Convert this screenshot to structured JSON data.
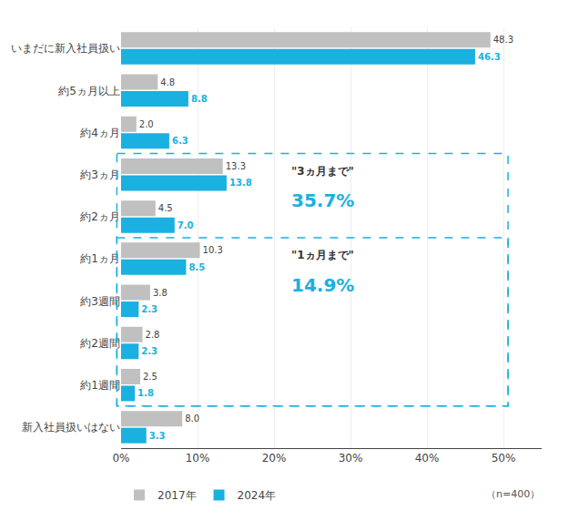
{
  "chart_data": {
    "type": "bar",
    "orientation": "horizontal",
    "categories": [
      "いまだに新入社員扱い",
      "約5ヵ月以上",
      "約4ヵ月",
      "約3ヵ月",
      "約2ヵ月",
      "約1ヵ月",
      "約3週間",
      "約2週間",
      "約1週間",
      "新入社員扱いはない"
    ],
    "series": [
      {
        "name": "2017年",
        "color": "#c0c0c0",
        "values": [
          48.3,
          4.8,
          2.0,
          13.3,
          4.5,
          10.3,
          3.8,
          2.8,
          2.5,
          8.0
        ],
        "value_labels": [
          "48.3",
          "4.8",
          "2.0",
          "13.3",
          "4.5",
          "10.3",
          "3.8",
          "2.8",
          "2.5",
          "8.0"
        ]
      },
      {
        "name": "2024年",
        "color": "#1ab0e0",
        "values": [
          46.3,
          8.8,
          6.3,
          13.8,
          7.0,
          8.5,
          2.3,
          2.3,
          1.8,
          3.3
        ],
        "value_labels": [
          "46.3",
          "8.8",
          "6.3",
          "13.8",
          "7.0",
          "8.5",
          "2.3",
          "2.3",
          "1.8",
          "3.3"
        ]
      }
    ],
    "xlim": [
      0,
      55
    ],
    "xticks": [
      {
        "value": 0,
        "label": "0%"
      },
      {
        "value": 10,
        "label": "10%"
      },
      {
        "value": 20,
        "label": "20%"
      },
      {
        "value": 30,
        "label": "30%"
      },
      {
        "value": 40,
        "label": "40%"
      },
      {
        "value": 50,
        "label": "50%"
      }
    ],
    "grid": true,
    "legend": "bottom left",
    "data_labels": true,
    "annotations": [
      {
        "text": "\"3ヵ月まで\"",
        "value": 35.7,
        "label": "35.7%",
        "from": "約3ヵ月",
        "to": "約1週間",
        "color": "#1ab0e0"
      },
      {
        "text": "\"1ヵ月まで\"",
        "value": 14.9,
        "label": "14.9%",
        "from": "約1ヵ月",
        "to": "約1週間",
        "color": "#1ab0e0"
      }
    ],
    "note": "（n=400）"
  }
}
